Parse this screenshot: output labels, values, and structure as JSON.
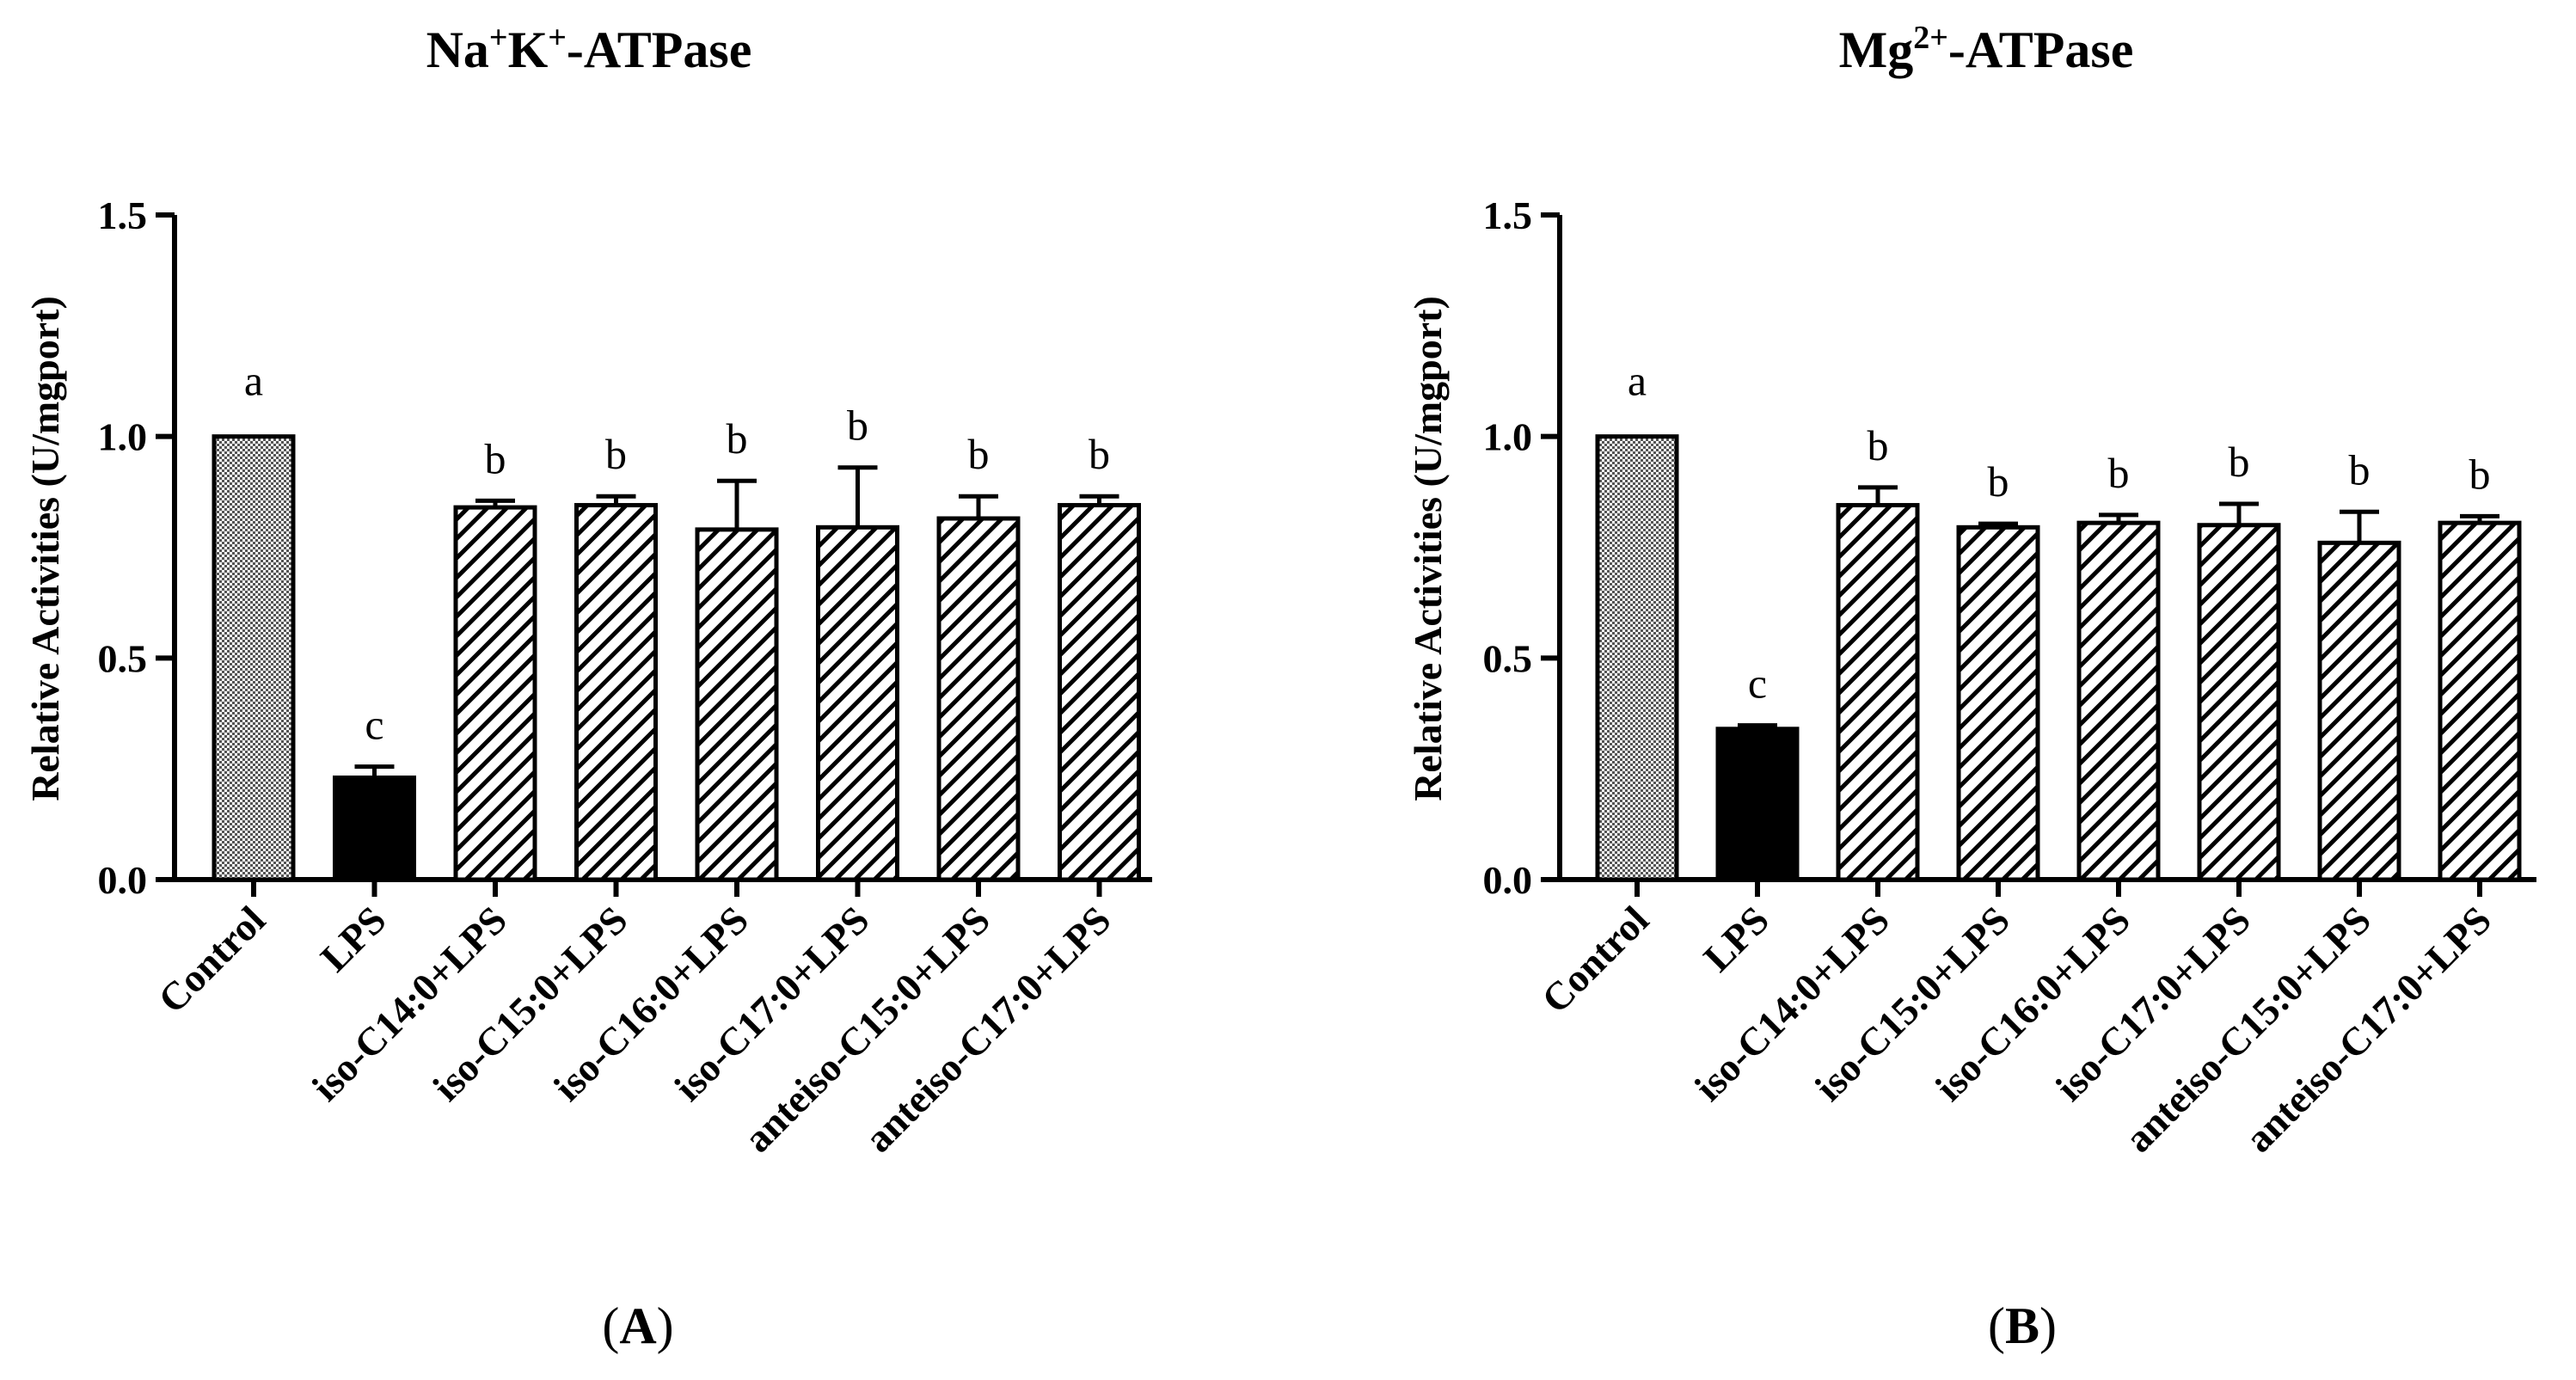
{
  "chart_data": [
    {
      "type": "bar",
      "panel_label": "A",
      "title": {
        "base": "Na",
        "sup1": "+",
        "mid": "K",
        "sup2": "+",
        "suffix": "-ATPase"
      },
      "ylabel": "Relative Activities (U/mgport)",
      "ylim": [
        0,
        1.5
      ],
      "yticks": [
        "0.0",
        "0.5",
        "1.0",
        "1.5"
      ],
      "categories": [
        "Control",
        "LPS",
        "iso-C14:0+LPS",
        "iso-C15:0+LPS",
        "iso-C16:0+LPS",
        "iso-C17:0+LPS",
        "anteiso-C15:0+LPS",
        "anteiso-C17:0+LPS"
      ],
      "values": [
        1.0,
        0.23,
        0.84,
        0.845,
        0.79,
        0.795,
        0.815,
        0.845
      ],
      "errors": [
        0.0,
        0.025,
        0.015,
        0.02,
        0.11,
        0.135,
        0.05,
        0.02
      ],
      "significance": [
        "a",
        "c",
        "b",
        "b",
        "b",
        "b",
        "b",
        "b"
      ],
      "fill": [
        "checker",
        "solid",
        "hatch",
        "hatch",
        "hatch",
        "hatch",
        "hatch",
        "hatch"
      ]
    },
    {
      "type": "bar",
      "panel_label": "B",
      "title": {
        "base": "Mg",
        "sup1": "2+",
        "mid": "",
        "sup2": "",
        "suffix": "-ATPase"
      },
      "ylabel": "Relative Activities (U/mgport)",
      "ylim": [
        0,
        1.5
      ],
      "yticks": [
        "0.0",
        "0.5",
        "1.0",
        "1.5"
      ],
      "categories": [
        "Control",
        "LPS",
        "iso-C14:0+LPS",
        "iso-C15:0+LPS",
        "iso-C16:0+LPS",
        "iso-C17:0+LPS",
        "anteiso-C15:0+LPS",
        "anteiso-C17:0+LPS"
      ],
      "values": [
        1.0,
        0.34,
        0.845,
        0.795,
        0.805,
        0.8,
        0.76,
        0.805
      ],
      "errors": [
        0.0,
        0.008,
        0.04,
        0.008,
        0.018,
        0.048,
        0.07,
        0.015
      ],
      "significance": [
        "a",
        "c",
        "b",
        "b",
        "b",
        "b",
        "b",
        "b"
      ],
      "fill": [
        "checker",
        "solid",
        "hatch",
        "hatch",
        "hatch",
        "hatch",
        "hatch",
        "hatch"
      ]
    }
  ],
  "colors": {
    "ink": "#000000",
    "checker_light": "#ffffff",
    "checker_dark": "#000000",
    "background": "#ffffff"
  }
}
